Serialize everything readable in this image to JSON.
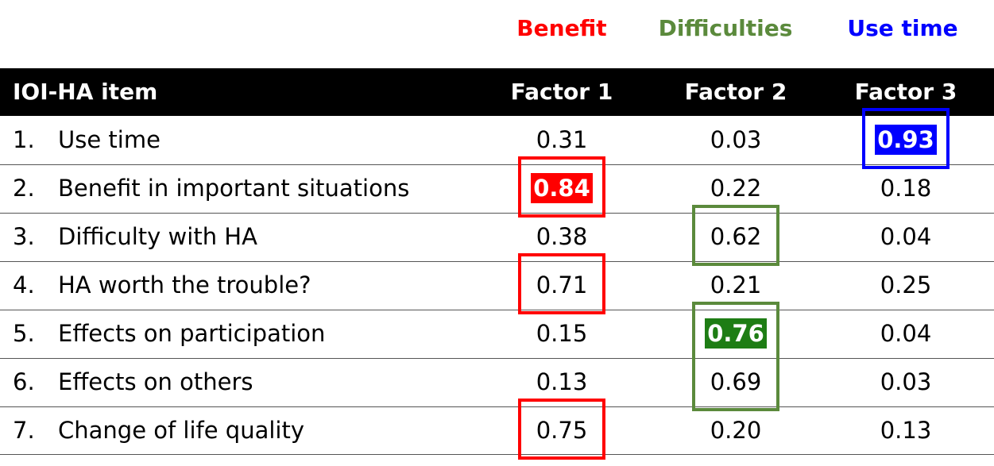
{
  "colors": {
    "factor1": "#ff0000",
    "factor2": "#5b8a3c",
    "factor2_fill": "#1e7d14",
    "factor3": "#0000ff",
    "header_bg": "#000000",
    "header_text": "#ffffff"
  },
  "factor_names": [
    "Benefit",
    "Difficulties",
    "Use time"
  ],
  "chart_data": {
    "type": "table",
    "columns": [
      "IOI-HA item",
      "Factor 1",
      "Factor 2",
      "Factor 3"
    ],
    "rows": [
      {
        "num": "1.",
        "item": "Use time",
        "values": [
          0.31,
          0.03,
          0.93
        ],
        "display": [
          "0.31",
          "0.03",
          "0.93"
        ]
      },
      {
        "num": "2.",
        "item": "Benefit in important situations",
        "values": [
          0.84,
          0.22,
          0.18
        ],
        "display": [
          "0.84",
          "0.22",
          "0.18"
        ]
      },
      {
        "num": "3.",
        "item": "Difficulty with HA",
        "values": [
          0.38,
          0.62,
          0.04
        ],
        "display": [
          "0.38",
          "0.62",
          "0.04"
        ]
      },
      {
        "num": "4.",
        "item": "HA worth the trouble?",
        "values": [
          0.71,
          0.21,
          0.25
        ],
        "display": [
          "0.71",
          "0.21",
          "0.25"
        ]
      },
      {
        "num": "5.",
        "item": "Effects on participation",
        "values": [
          0.15,
          0.76,
          0.04
        ],
        "display": [
          "0.15",
          "0.76",
          "0.04"
        ]
      },
      {
        "num": "6.",
        "item": "Effects on others",
        "values": [
          0.13,
          0.69,
          0.03
        ],
        "display": [
          "0.13",
          "0.69",
          "0.03"
        ]
      },
      {
        "num": "7.",
        "item": "Change of life quality",
        "values": [
          0.75,
          0.2,
          0.13
        ],
        "display": [
          "0.75",
          "0.20",
          "0.13"
        ]
      }
    ],
    "highlighted_cells": [
      {
        "row": 0,
        "factor": 2,
        "filled": true
      },
      {
        "row": 1,
        "factor": 0,
        "filled": true
      },
      {
        "row": 4,
        "factor": 1,
        "filled": true
      }
    ],
    "boxed_groups": [
      {
        "factor": 0,
        "rows": [
          1
        ]
      },
      {
        "factor": 0,
        "rows": [
          3
        ]
      },
      {
        "factor": 0,
        "rows": [
          6
        ]
      },
      {
        "factor": 1,
        "rows": [
          2
        ]
      },
      {
        "factor": 1,
        "rows": [
          4,
          5
        ]
      },
      {
        "factor": 2,
        "rows": [
          0
        ]
      }
    ]
  }
}
